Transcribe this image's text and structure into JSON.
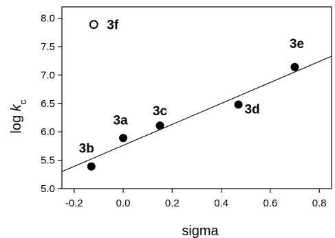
{
  "chart_data": {
    "type": "scatter",
    "xlabel": "sigma",
    "ylabel_main": "log ",
    "ylabel_italic": "k",
    "ylabel_sub": "c",
    "xlim": [
      -0.25,
      0.85
    ],
    "ylim": [
      5.0,
      8.2
    ],
    "x_ticks": [
      -0.2,
      0.0,
      0.2,
      0.4,
      0.6,
      0.8
    ],
    "x_tick_labels": [
      "-0.2",
      "0.0",
      "0.2",
      "0.4",
      "0.6",
      "0.8"
    ],
    "y_ticks": [
      5.0,
      5.5,
      6.0,
      6.5,
      7.0,
      7.5,
      8.0
    ],
    "y_tick_labels": [
      "5.0",
      "5.5",
      "6.0",
      "6.5",
      "7.0",
      "7.5",
      "8.0"
    ],
    "grid": false,
    "points": [
      {
        "label": "3a",
        "x": 0.0,
        "y": 5.89,
        "filled": true
      },
      {
        "label": "3b",
        "x": -0.13,
        "y": 5.39,
        "filled": true
      },
      {
        "label": "3c",
        "x": 0.15,
        "y": 6.11,
        "filled": true
      },
      {
        "label": "3d",
        "x": 0.47,
        "y": 6.48,
        "filled": true
      },
      {
        "label": "3e",
        "x": 0.7,
        "y": 7.14,
        "filled": true
      },
      {
        "label": "3f",
        "x": -0.12,
        "y": 7.89,
        "filled": false
      }
    ],
    "fit_line": {
      "x": [
        -0.25,
        0.85
      ],
      "y": [
        5.3,
        7.33
      ]
    }
  }
}
